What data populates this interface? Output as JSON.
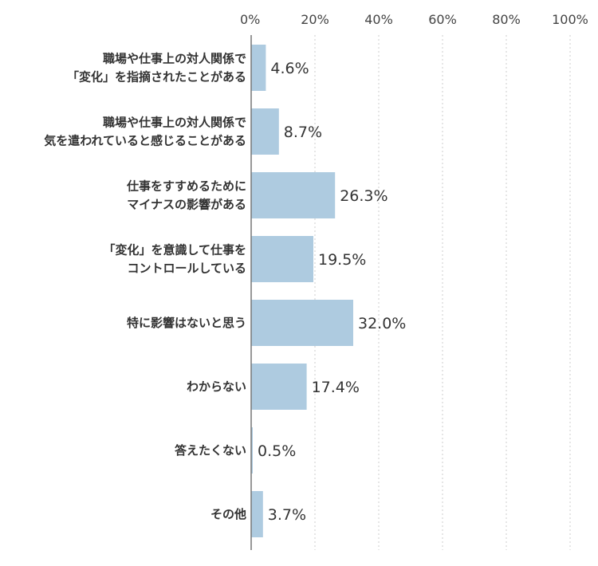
{
  "chart_data": {
    "type": "bar",
    "orientation": "horizontal",
    "title": "",
    "xlabel": "",
    "ylabel": "",
    "xlim": [
      0,
      100
    ],
    "x_ticks": [
      0,
      20,
      40,
      60,
      80,
      100
    ],
    "x_tick_labels": [
      "0%",
      "20%",
      "40%",
      "60%",
      "80%",
      "100%"
    ],
    "grid": true,
    "legend": "none",
    "bar_color": "#aecbe0",
    "categories": [
      [
        "職場や仕事上の対人関係で",
        "「変化」を指摘されたことがある"
      ],
      [
        "職場や仕事上の対人関係で",
        "気を遣われていると感じることがある"
      ],
      [
        "仕事をすすめるために",
        "マイナスの影響がある"
      ],
      [
        "「変化」を意識して仕事を",
        "コントロールしている"
      ],
      [
        "特に影響はないと思う"
      ],
      [
        "わからない"
      ],
      [
        "答えたくない"
      ],
      [
        "その他"
      ]
    ],
    "values": [
      4.6,
      8.7,
      26.3,
      19.5,
      32.0,
      17.4,
      0.5,
      3.7
    ],
    "value_labels": [
      "4.6%",
      "8.7%",
      "26.3%",
      "19.5%",
      "32.0%",
      "17.4%",
      "0.5%",
      "3.7%"
    ]
  }
}
